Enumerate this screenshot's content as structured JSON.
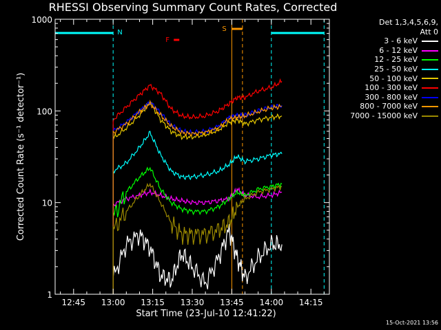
{
  "chart_data": {
    "type": "line",
    "title": "RHESSI Observing Summary Count Rates, Corrected",
    "xlabel": "Start Time (23-Jul-10 12:41:22)",
    "ylabel": "Corrected Count Rate (s⁻¹ detector⁻¹)",
    "y_scale": "log",
    "ylim": [
      1,
      1000
    ],
    "xlim_minutes": [
      "12:38",
      "14:22"
    ],
    "x_ticks": [
      "12:45",
      "13:00",
      "13:15",
      "13:30",
      "13:45",
      "14:00",
      "14:15"
    ],
    "y_ticks": [
      "1",
      "10",
      "100",
      "1000"
    ],
    "legend_header": [
      "Det 1,3,4,5,6,9,",
      "Att 0"
    ],
    "flag_labels": {
      "night": "N",
      "flare": "F",
      "saa": "S"
    },
    "flags": {
      "night_intervals": [
        [
          "12:38",
          "13:00"
        ],
        [
          "14:00",
          "14:20"
        ]
      ],
      "flare_marker": "13:23",
      "saa_interval": [
        "13:45",
        "13:48"
      ]
    },
    "x": [
      "13:00",
      "13:05",
      "13:10",
      "13:14",
      "13:18",
      "13:22",
      "13:26",
      "13:30",
      "13:35",
      "13:40",
      "13:44",
      "13:47",
      "13:50",
      "13:55",
      "14:00",
      "14:04"
    ],
    "series": [
      {
        "name": "3 - 6 keV",
        "color": "#ffffff",
        "values": [
          1.5,
          3.5,
          4.5,
          3.2,
          1.6,
          1.4,
          2.8,
          2.0,
          1.3,
          2.5,
          5.0,
          2.5,
          1.5,
          2.5,
          3.5,
          3.5
        ]
      },
      {
        "name": "6 - 12 keV",
        "color": "#ff00ff",
        "values": [
          9.5,
          11,
          12,
          13,
          12,
          11,
          10.5,
          10,
          10,
          10.5,
          11,
          14,
          12,
          11.5,
          12,
          13
        ]
      },
      {
        "name": "12 - 25 keV",
        "color": "#00ff00",
        "values": [
          7,
          13,
          19,
          24,
          14,
          10,
          8.5,
          8,
          8,
          9,
          11,
          13,
          12,
          14,
          15,
          16
        ]
      },
      {
        "name": "25 - 50 keV",
        "color": "#00ffff",
        "values": [
          22,
          27,
          40,
          58,
          33,
          22,
          19,
          19,
          20,
          22,
          26,
          32,
          28,
          30,
          33,
          34
        ]
      },
      {
        "name": "50 - 100 keV",
        "color": "#e6c800",
        "values": [
          50,
          65,
          90,
          125,
          80,
          60,
          52,
          52,
          55,
          62,
          75,
          80,
          72,
          80,
          85,
          88
        ]
      },
      {
        "name": "100 - 300 keV",
        "color": "#ff0000",
        "values": [
          80,
          110,
          150,
          190,
          155,
          105,
          88,
          85,
          88,
          100,
          120,
          140,
          140,
          165,
          180,
          210
        ]
      },
      {
        "name": "300 - 800 keV",
        "color": "#0000ff",
        "values": [
          60,
          75,
          100,
          125,
          95,
          70,
          60,
          58,
          60,
          68,
          85,
          90,
          90,
          100,
          110,
          115
        ]
      },
      {
        "name": "800 - 7000 keV",
        "color": "#ff9900",
        "values": [
          58,
          72,
          98,
          120,
          90,
          68,
          58,
          56,
          58,
          65,
          82,
          85,
          88,
          98,
          108,
          112
        ]
      },
      {
        "name": "7000 - 15000 keV",
        "color": "#9c8a00",
        "values": [
          5,
          8,
          12,
          16,
          10,
          6,
          4.5,
          4.5,
          4.5,
          5,
          6,
          9,
          11,
          13,
          14,
          15
        ]
      }
    ],
    "grid": false,
    "legend_position": "right",
    "footer_date": "15-Oct-2021 13:56"
  }
}
